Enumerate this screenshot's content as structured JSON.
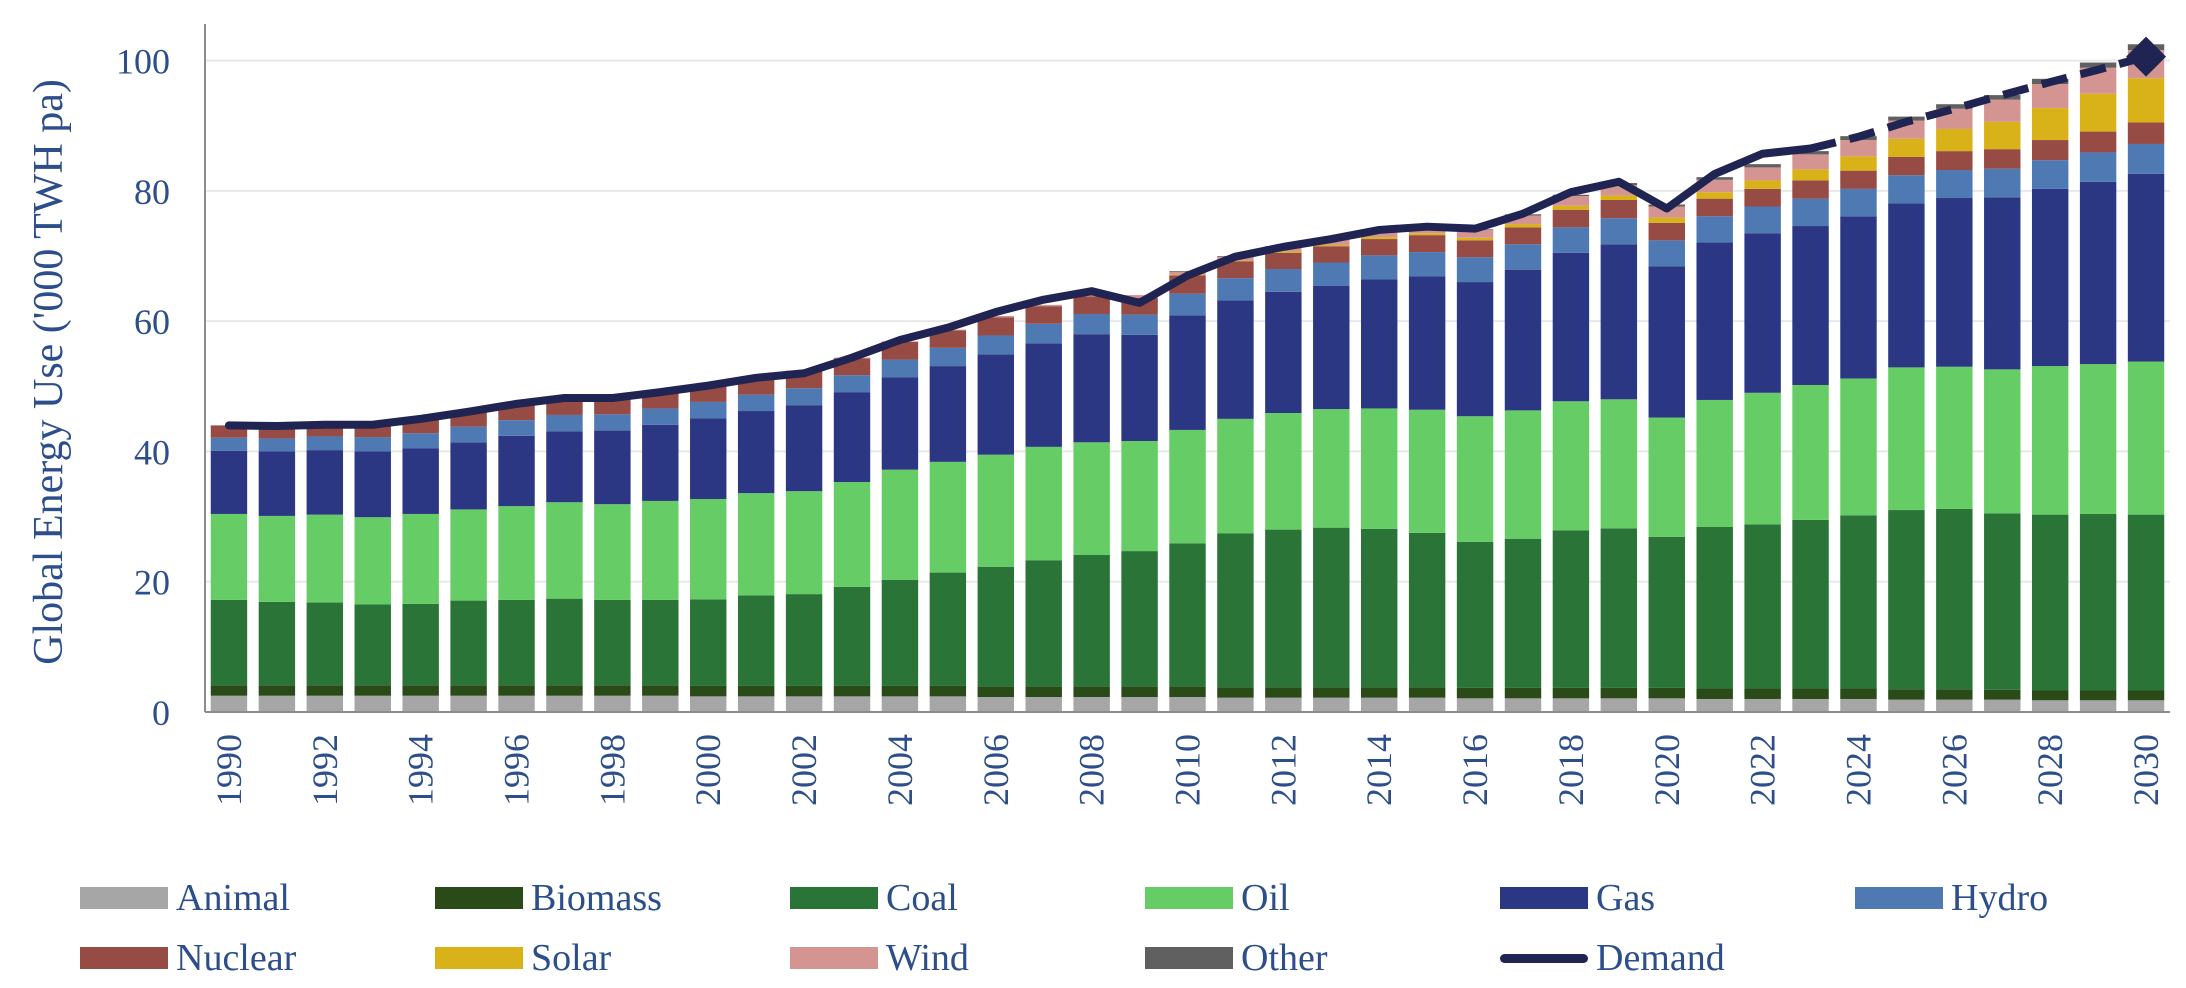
{
  "chart_data": {
    "type": "bar",
    "stacked": true,
    "title": "",
    "xlabel": "",
    "ylabel": "Global Energy Use ('000 TWH pa)",
    "ylim": [
      0,
      105
    ],
    "yticks": [
      0,
      20,
      40,
      60,
      80,
      100
    ],
    "x_tick_labels": [
      "1990",
      "1992",
      "1994",
      "1996",
      "1998",
      "2000",
      "2002",
      "2004",
      "2006",
      "2008",
      "2010",
      "2012",
      "2014",
      "2016",
      "2018",
      "2020",
      "2022",
      "2024",
      "2026",
      "2028",
      "2030"
    ],
    "grid": true,
    "legend_position": "bottom",
    "categories": [
      1990,
      1991,
      1992,
      1993,
      1994,
      1995,
      1996,
      1997,
      1998,
      1999,
      2000,
      2001,
      2002,
      2003,
      2004,
      2005,
      2006,
      2007,
      2008,
      2009,
      2010,
      2011,
      2012,
      2013,
      2014,
      2015,
      2016,
      2017,
      2018,
      2019,
      2020,
      2021,
      2022,
      2023,
      2024,
      2025,
      2026,
      2027,
      2028,
      2029,
      2030
    ],
    "series": [
      {
        "name": "Animal",
        "color": "#A6A6A6",
        "values": [
          2.5,
          2.5,
          2.5,
          2.5,
          2.5,
          2.5,
          2.5,
          2.5,
          2.5,
          2.5,
          2.4,
          2.4,
          2.4,
          2.4,
          2.4,
          2.4,
          2.3,
          2.3,
          2.3,
          2.3,
          2.3,
          2.2,
          2.2,
          2.2,
          2.2,
          2.2,
          2.1,
          2.1,
          2.1,
          2.1,
          2.1,
          2.0,
          2.0,
          2.0,
          2.0,
          1.9,
          1.9,
          1.9,
          1.8,
          1.8,
          1.8
        ]
      },
      {
        "name": "Biomass",
        "color": "#2A4A17",
        "values": [
          1.6,
          1.6,
          1.6,
          1.6,
          1.6,
          1.6,
          1.6,
          1.6,
          1.6,
          1.6,
          1.6,
          1.6,
          1.6,
          1.6,
          1.6,
          1.6,
          1.6,
          1.6,
          1.6,
          1.6,
          1.6,
          1.6,
          1.6,
          1.6,
          1.6,
          1.6,
          1.6,
          1.6,
          1.6,
          1.6,
          1.6,
          1.6,
          1.6,
          1.6,
          1.6,
          1.6,
          1.6,
          1.5,
          1.5,
          1.5,
          1.5
        ]
      },
      {
        "name": "Coal",
        "color": "#2A7438",
        "values": [
          13.1,
          12.8,
          12.7,
          12.4,
          12.5,
          13.0,
          13.1,
          13.3,
          13.1,
          13.1,
          13.3,
          13.9,
          14.1,
          15.2,
          16.3,
          17.4,
          18.4,
          19.4,
          20.2,
          20.8,
          22.0,
          23.6,
          24.2,
          24.5,
          24.3,
          23.7,
          22.4,
          22.9,
          24.2,
          24.5,
          23.2,
          24.8,
          25.2,
          25.9,
          26.6,
          27.5,
          27.7,
          27.1,
          27.0,
          27.1,
          27.0
        ]
      },
      {
        "name": "Oil",
        "color": "#66CC66",
        "values": [
          13.2,
          13.2,
          13.5,
          13.4,
          13.8,
          14.0,
          14.4,
          14.8,
          14.7,
          15.2,
          15.4,
          15.7,
          15.8,
          16.1,
          16.9,
          17.0,
          17.2,
          17.4,
          17.3,
          16.9,
          17.4,
          17.6,
          17.9,
          18.2,
          18.5,
          18.9,
          19.3,
          19.7,
          19.8,
          19.8,
          18.3,
          19.5,
          20.2,
          20.7,
          21.0,
          21.9,
          21.8,
          22.1,
          22.8,
          23.0,
          23.5
        ]
      },
      {
        "name": "Gas",
        "color": "#2C3784",
        "values": [
          9.7,
          9.9,
          9.9,
          10.1,
          10.1,
          10.3,
          10.8,
          10.9,
          11.3,
          11.7,
          12.4,
          12.6,
          13.2,
          13.8,
          14.2,
          14.7,
          15.4,
          15.9,
          16.6,
          16.3,
          17.6,
          18.2,
          18.6,
          18.9,
          19.8,
          20.5,
          20.6,
          21.6,
          22.8,
          23.8,
          23.2,
          24.2,
          24.5,
          24.4,
          24.9,
          25.2,
          25.9,
          26.4,
          27.2,
          28.0,
          28.8
        ]
      },
      {
        "name": "Hydro",
        "color": "#4E79B3",
        "values": [
          2.0,
          2.0,
          2.1,
          2.2,
          2.3,
          2.4,
          2.4,
          2.5,
          2.5,
          2.5,
          2.5,
          2.5,
          2.6,
          2.6,
          2.7,
          2.8,
          2.9,
          3.0,
          3.1,
          3.1,
          3.3,
          3.4,
          3.5,
          3.6,
          3.7,
          3.7,
          3.8,
          3.9,
          3.9,
          4.0,
          4.0,
          4.0,
          4.1,
          4.2,
          4.2,
          4.3,
          4.3,
          4.4,
          4.4,
          4.5,
          4.6
        ]
      },
      {
        "name": "Nuclear",
        "color": "#964B45",
        "values": [
          1.9,
          2.0,
          2.0,
          2.1,
          2.1,
          2.2,
          2.3,
          2.3,
          2.3,
          2.4,
          2.5,
          2.6,
          2.6,
          2.6,
          2.7,
          2.7,
          2.8,
          2.7,
          2.7,
          2.6,
          2.8,
          2.6,
          2.5,
          2.5,
          2.5,
          2.6,
          2.6,
          2.6,
          2.7,
          2.8,
          2.7,
          2.7,
          2.7,
          2.8,
          2.8,
          2.8,
          2.9,
          3.0,
          3.1,
          3.2,
          3.3
        ]
      },
      {
        "name": "Solar",
        "color": "#D9B21A",
        "values": [
          0,
          0,
          0,
          0,
          0,
          0,
          0,
          0,
          0,
          0,
          0,
          0,
          0,
          0,
          0,
          0,
          0,
          0,
          0,
          0,
          0.1,
          0.1,
          0.2,
          0.2,
          0.3,
          0.3,
          0.4,
          0.5,
          0.6,
          0.7,
          0.8,
          1.0,
          1.3,
          1.7,
          2.2,
          2.8,
          3.4,
          4.2,
          4.9,
          5.8,
          6.8
        ]
      },
      {
        "name": "Wind",
        "color": "#D49592",
        "values": [
          0,
          0,
          0,
          0,
          0,
          0,
          0,
          0,
          0,
          0,
          0.1,
          0.1,
          0.1,
          0.1,
          0.1,
          0.1,
          0.2,
          0.2,
          0.3,
          0.4,
          0.5,
          0.6,
          0.7,
          0.8,
          0.9,
          1.0,
          1.2,
          1.3,
          1.5,
          1.6,
          1.7,
          1.9,
          2.0,
          2.3,
          2.5,
          2.8,
          3.1,
          3.4,
          3.7,
          4.0,
          4.3
        ]
      },
      {
        "name": "Other",
        "color": "#606060",
        "values": [
          0,
          0,
          0,
          0,
          0,
          0,
          0,
          0,
          0,
          0,
          0,
          0,
          0,
          0,
          0,
          0,
          0,
          0,
          0,
          0,
          0.1,
          0.1,
          0.1,
          0.1,
          0.1,
          0.1,
          0.1,
          0.2,
          0.2,
          0.3,
          0.3,
          0.4,
          0.5,
          0.5,
          0.6,
          0.6,
          0.7,
          0.7,
          0.8,
          0.8,
          0.9
        ]
      }
    ],
    "line_series": {
      "name": "Demand",
      "color": "#1F2452",
      "values": [
        44.0,
        43.9,
        44.1,
        44.1,
        45.0,
        46.1,
        47.3,
        48.2,
        48.2,
        49.1,
        50.1,
        51.3,
        52.0,
        54.4,
        57.1,
        59.0,
        61.4,
        63.3,
        64.6,
        62.8,
        67.0,
        69.9,
        71.4,
        72.6,
        74.0,
        74.5,
        74.2,
        76.5,
        79.8,
        81.4,
        77.3,
        82.6,
        85.7,
        86.5,
        88.3,
        90.6,
        92.6,
        94.7,
        96.7,
        98.6,
        100.6
      ],
      "actual_through": 2023,
      "forecast_style": "dashed",
      "end_marker": "diamond"
    }
  },
  "legend": [
    {
      "label": "Animal",
      "color": "#A6A6A6",
      "kind": "box"
    },
    {
      "label": "Biomass",
      "color": "#2A4A17",
      "kind": "box"
    },
    {
      "label": "Coal",
      "color": "#2A7438",
      "kind": "box"
    },
    {
      "label": "Oil",
      "color": "#66CC66",
      "kind": "box"
    },
    {
      "label": "Gas",
      "color": "#2C3784",
      "kind": "box"
    },
    {
      "label": "Hydro",
      "color": "#4E79B3",
      "kind": "box"
    },
    {
      "label": "Nuclear",
      "color": "#964B45",
      "kind": "box"
    },
    {
      "label": "Solar",
      "color": "#D9B21A",
      "kind": "box"
    },
    {
      "label": "Wind",
      "color": "#D49592",
      "kind": "box"
    },
    {
      "label": "Other",
      "color": "#606060",
      "kind": "box"
    },
    {
      "label": "Demand",
      "color": "#1F2452",
      "kind": "line"
    }
  ],
  "colors": {
    "axis_text": "#2C4E8A",
    "grid": "#E8E8E8",
    "axis_line": "#8C8C8C"
  }
}
